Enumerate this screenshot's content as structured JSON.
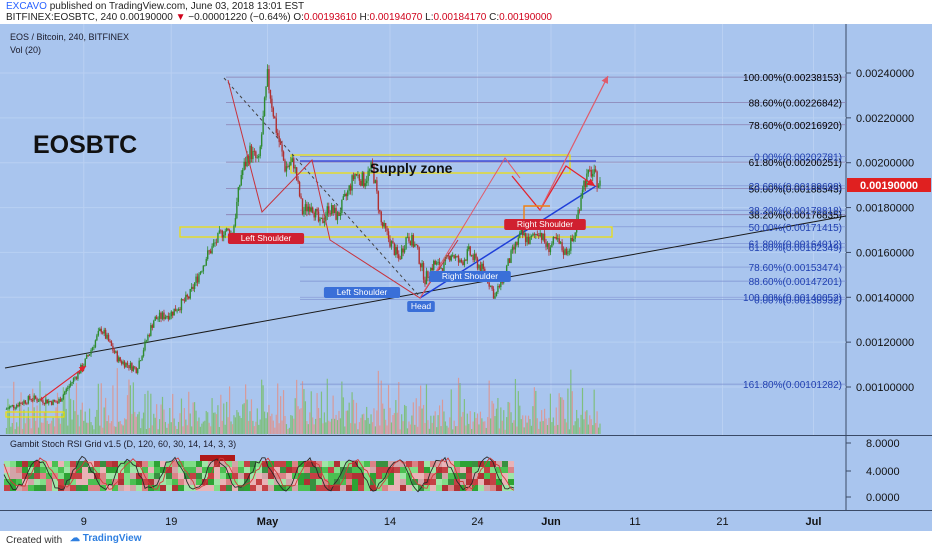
{
  "header": {
    "author": "EXCAVO",
    "published": "published on TradingView.com, June 03, 2018 13:01 EST",
    "symbol_line": "BITFINEX:EOSBTC, 240",
    "last_price": "0.00190000",
    "change": "−0.00001220 (−0.64%)",
    "o_label": "O:",
    "o_value": "0.00193610",
    "h_label": "H:",
    "h_value": "0.00194070",
    "l_label": "L:",
    "l_value": "0.00184170",
    "c_label": "C:",
    "c_value": "0.00190000"
  },
  "pane": {
    "title": "EOS / Bitcoin, 240, BITFINEX",
    "volume_label": "Vol (20)",
    "big_title": "EOSBTC",
    "supply_zone": "Supply zone",
    "oscillator_label": "Gambit Stoch RSI Grid v1.5 (D, 120, 60, 30, 14, 14, 3, 3)"
  },
  "footer": {
    "created_with": "Created with",
    "brand": "TradingView"
  },
  "colors": {
    "background": "#a9c5ee",
    "up_candle": "#2e8b2e",
    "down_candle": "#b03030",
    "price_tag": "#e02020",
    "fib_text": "#1f3fb0",
    "fib_text_upper": "#000000"
  },
  "chart_data": {
    "type": "candlestick",
    "x_axis_ticks": [
      "9",
      "19",
      "May",
      "14",
      "24",
      "Jun",
      "11",
      "21",
      "Jul"
    ],
    "y_axis_ticks": [
      "0.00240000",
      "0.00220000",
      "0.00200000",
      "0.00180000",
      "0.00160000",
      "0.00140000",
      "0.00120000",
      "0.00100000"
    ],
    "ylim": [
      0.00083,
      0.00252
    ],
    "current_price": "0.00190000",
    "oscillator_ticks": [
      "8.0000",
      "4.0000",
      "0.0000"
    ],
    "fib_levels_upper": [
      {
        "label": "100.00%(0.00238153)",
        "value": 0.00238153
      },
      {
        "label": "88.60%(0.00226842)",
        "value": 0.00226842
      },
      {
        "label": "78.60%(0.00216920)",
        "value": 0.0021692
      },
      {
        "label": "61.80%(0.00200251)",
        "value": 0.00200251
      },
      {
        "label": "50.00%(0.00188543)",
        "value": 0.00188543
      },
      {
        "label": "38.20%(0.00176835)",
        "value": 0.00176835
      }
    ],
    "fib_levels_lower": [
      {
        "label": "0.00%(0.00202781)",
        "value": 0.00202781
      },
      {
        "label": "23.60%(0.00189698)",
        "value": 0.00189698
      },
      {
        "label": "38.20%(0.00178818)",
        "value": 0.00178818
      },
      {
        "label": "50.00%(0.00171415)",
        "value": 0.00171415
      },
      {
        "label": "61.80%(0.00164012)",
        "value": 0.00164012
      },
      {
        "label": "61.80%(0.00162349)",
        "value": 0.00162349
      },
      {
        "label": "78.60%(0.00153474)",
        "value": 0.00153474
      },
      {
        "label": "88.60%(0.00147201)",
        "value": 0.00147201
      },
      {
        "label": "100.00%(0.00140052)",
        "value": 0.00140052
      },
      {
        "label": "0.00%(0.00138932)",
        "value": 0.00138932
      },
      {
        "label": "161.80%(0.00101282)",
        "value": 0.00101282
      }
    ],
    "pattern_labels": [
      "Left Shoulder",
      "Left Shoulder",
      "Head",
      "Right Shoulder",
      "Right Shoulder"
    ],
    "price_path": [
      {
        "d": 0,
        "c": 0.0009
      },
      {
        "d": 3,
        "c": 0.00095
      },
      {
        "d": 6,
        "c": 0.00093
      },
      {
        "d": 9,
        "c": 0.0011
      },
      {
        "d": 11,
        "c": 0.00126
      },
      {
        "d": 13,
        "c": 0.00112
      },
      {
        "d": 15,
        "c": 0.00108
      },
      {
        "d": 17,
        "c": 0.0013
      },
      {
        "d": 19,
        "c": 0.00133
      },
      {
        "d": 21,
        "c": 0.0014
      },
      {
        "d": 23,
        "c": 0.00158
      },
      {
        "d": 25,
        "c": 0.0017
      },
      {
        "d": 26,
        "c": 0.00168
      },
      {
        "d": 27,
        "c": 0.00195
      },
      {
        "d": 28,
        "c": 0.00205
      },
      {
        "d": 29,
        "c": 0.002
      },
      {
        "d": 30,
        "c": 0.00238
      },
      {
        "d": 31,
        "c": 0.00215
      },
      {
        "d": 32,
        "c": 0.00198
      },
      {
        "d": 33,
        "c": 0.002
      },
      {
        "d": 34,
        "c": 0.00178
      },
      {
        "d": 35,
        "c": 0.00182
      },
      {
        "d": 36,
        "c": 0.00172
      },
      {
        "d": 37,
        "c": 0.0018
      },
      {
        "d": 38,
        "c": 0.00176
      },
      {
        "d": 39,
        "c": 0.00185
      },
      {
        "d": 40,
        "c": 0.00195
      },
      {
        "d": 41,
        "c": 0.00192
      },
      {
        "d": 42,
        "c": 0.00198
      },
      {
        "d": 43,
        "c": 0.00173
      },
      {
        "d": 44,
        "c": 0.00165
      },
      {
        "d": 45,
        "c": 0.00157
      },
      {
        "d": 46,
        "c": 0.00168
      },
      {
        "d": 47,
        "c": 0.00162
      },
      {
        "d": 48,
        "c": 0.00148
      },
      {
        "d": 49,
        "c": 0.00155
      },
      {
        "d": 50,
        "c": 0.00153
      },
      {
        "d": 51,
        "c": 0.0016
      },
      {
        "d": 52,
        "c": 0.00155
      },
      {
        "d": 53,
        "c": 0.0016
      },
      {
        "d": 54,
        "c": 0.00155
      },
      {
        "d": 55,
        "c": 0.0015
      },
      {
        "d": 56,
        "c": 0.0014
      },
      {
        "d": 57,
        "c": 0.0015
      },
      {
        "d": 58,
        "c": 0.0016
      },
      {
        "d": 59,
        "c": 0.00168
      },
      {
        "d": 60,
        "c": 0.00165
      },
      {
        "d": 61,
        "c": 0.0017
      },
      {
        "d": 62,
        "c": 0.00162
      },
      {
        "d": 63,
        "c": 0.00165
      },
      {
        "d": 64,
        "c": 0.0016
      },
      {
        "d": 65,
        "c": 0.00166
      },
      {
        "d": 66,
        "c": 0.0019
      },
      {
        "d": 67,
        "c": 0.00196
      },
      {
        "d": 68,
        "c": 0.0019
      }
    ]
  }
}
